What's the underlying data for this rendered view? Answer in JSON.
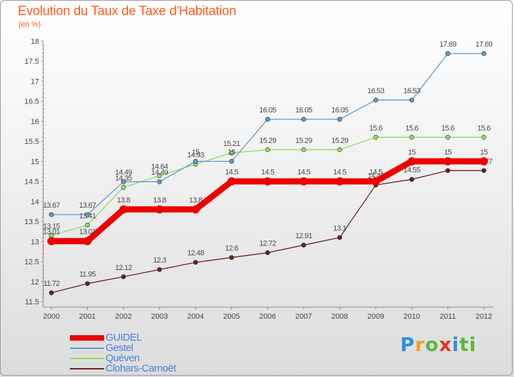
{
  "title": "Evolution du Taux de Taxe d'Habitation",
  "subtitle": "(en %)",
  "logo_text": "Proxiti",
  "chart_data": {
    "type": "line",
    "title": "Evolution du Taux de Taxe d'Habitation",
    "ylabel": "(en %)",
    "xlabel": "",
    "x": [
      "2000",
      "2001",
      "2002",
      "2003",
      "2004",
      "2005",
      "2006",
      "2007",
      "2008",
      "2009",
      "2010",
      "2011",
      "2012"
    ],
    "ylim": [
      11.5,
      18
    ],
    "yticks": [
      "11.5",
      "12",
      "12.5",
      "13",
      "13.5",
      "14",
      "14.5",
      "15",
      "15.5",
      "16",
      "16.5",
      "17",
      "17.5",
      "18"
    ],
    "grid": false,
    "legend_position": "bottom-left",
    "series": [
      {
        "name": "Clohars-Carnoët",
        "color": "#6b1f1f",
        "values": [
          11.72,
          11.95,
          12.12,
          12.3,
          12.48,
          12.6,
          12.72,
          12.91,
          13.1,
          14.41,
          14.55,
          14.77,
          14.77
        ],
        "labels": [
          "11.72",
          "11.95",
          "12.12",
          "12.3",
          "12.48",
          "12.6",
          "12.72",
          "12.91",
          "13.1",
          "14.41",
          "14.55",
          "14.77",
          "14.77"
        ]
      },
      {
        "name": "Quéven",
        "color": "#8fdc5e",
        "values": [
          13.15,
          13.41,
          14.35,
          14.64,
          14.93,
          15.21,
          15.29,
          15.29,
          15.29,
          15.6,
          15.6,
          15.6,
          15.6
        ],
        "labels": [
          "13.15",
          "13.41",
          "14.35",
          "14.64",
          "14.93",
          "15.21",
          "15.29",
          "15.29",
          "15.29",
          "15.6",
          "15.6",
          "15.6",
          "15.6"
        ]
      },
      {
        "name": "Gestel",
        "color": "#5e99cc",
        "values": [
          13.67,
          13.67,
          14.49,
          14.49,
          15,
          15,
          16.05,
          16.05,
          16.05,
          16.53,
          16.53,
          17.69,
          17.69
        ],
        "labels": [
          "13.67",
          "13.67",
          "14.49",
          "14.49",
          "15",
          "15",
          "16.05",
          "16.05",
          "16.05",
          "16.53",
          "16.53",
          "17.69",
          "17.69"
        ]
      },
      {
        "name": "GUIDEL",
        "color": "#ee0000",
        "values": [
          13.01,
          13.01,
          13.8,
          13.8,
          13.8,
          14.5,
          14.5,
          14.5,
          14.5,
          14.5,
          15,
          15,
          15
        ],
        "labels": [
          "13.01",
          "13.01",
          "13.8",
          "13.8",
          "13.8",
          "14.5",
          "14.5",
          "14.5",
          "14.5",
          "14.5",
          "15",
          "15",
          "15"
        ]
      }
    ],
    "legend": [
      "GUIDEL",
      "Gestel",
      "Quéven",
      "Clohars-Carnoët"
    ]
  }
}
